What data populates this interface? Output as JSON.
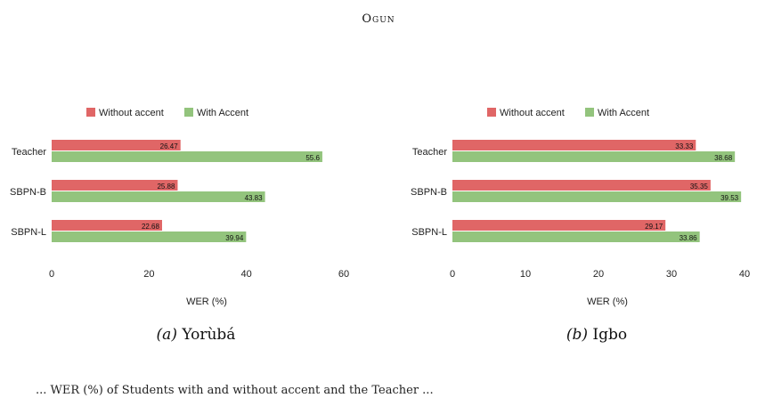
{
  "header": {
    "title": "Ogun"
  },
  "captions": [
    {
      "label": "(a)",
      "text": "Yorùbá"
    },
    {
      "label": "(b)",
      "text": "Igbo"
    }
  ],
  "bottom_text": "... WER (%) of Students with and without accent and the Teacher ...",
  "colors": {
    "without_accent": "#e06666",
    "with_accent": "#93c47d"
  },
  "chart_data": [
    {
      "type": "bar",
      "orientation": "horizontal",
      "categories": [
        "Teacher",
        "SBPN-B",
        "SBPN-L"
      ],
      "series": [
        {
          "name": "Without accent",
          "values": [
            26.47,
            25.88,
            22.68
          ]
        },
        {
          "name": "With Accent",
          "values": [
            55.6,
            43.83,
            39.94
          ]
        }
      ],
      "value_labels": [
        [
          "26.47",
          "25.88",
          "22.68"
        ],
        [
          "55.6",
          "43.83",
          "39.94"
        ]
      ],
      "xlabel": "WER (%)",
      "xlim": [
        0,
        60
      ],
      "xticks": [
        "0",
        "20",
        "40",
        "60"
      ],
      "legend": "top-center",
      "grid": false
    },
    {
      "type": "bar",
      "orientation": "horizontal",
      "categories": [
        "Teacher",
        "SBPN-B",
        "SBPN-L"
      ],
      "series": [
        {
          "name": "Without accent",
          "values": [
            33.33,
            35.35,
            29.17
          ]
        },
        {
          "name": "With Accent",
          "values": [
            38.68,
            39.53,
            33.86
          ]
        }
      ],
      "value_labels": [
        [
          "33.33",
          "35.35",
          "29.17"
        ],
        [
          "38.68",
          "39.53",
          "33.86"
        ]
      ],
      "xlabel": "WER (%)",
      "xlim": [
        0,
        40
      ],
      "xticks": [
        "0",
        "10",
        "20",
        "30",
        "40"
      ],
      "legend": "top-center",
      "grid": false
    }
  ]
}
